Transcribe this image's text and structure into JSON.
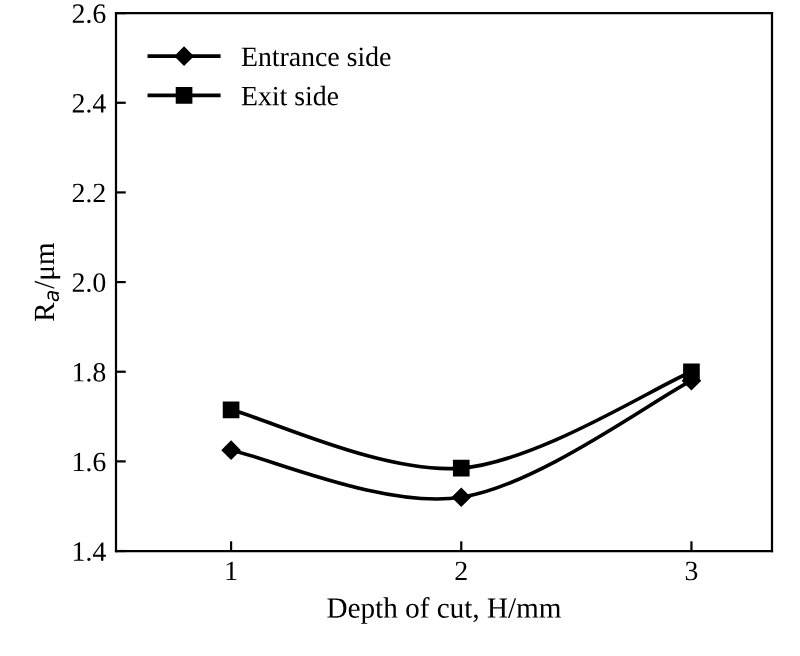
{
  "chart_data": {
    "type": "line",
    "xlabel": "Depth of cut, H/mm",
    "ylabel": "R$_{a}$/μm",
    "x": [
      1,
      2,
      3
    ],
    "series": [
      {
        "name": "Entrance side",
        "color": "#000000",
        "marker": "diamond",
        "values": [
          1.625,
          1.52,
          1.78
        ]
      },
      {
        "name": "Exit side",
        "color": "#000000",
        "marker": "square",
        "values": [
          1.715,
          1.585,
          1.8
        ]
      }
    ],
    "xlim": [
      0.5,
      3.35
    ],
    "xticks": [
      1,
      2,
      3
    ],
    "ylim": [
      1.4,
      2.6
    ],
    "yticks": [
      {
        "value": 1.4,
        "label": "1.4"
      },
      {
        "value": 1.6,
        "label": "1.6"
      },
      {
        "value": 1.8,
        "label": "1.8"
      },
      {
        "value": 2.0,
        "label": "2.0"
      },
      {
        "value": 2.2,
        "label": "2.2"
      },
      {
        "value": 2.4,
        "label": "2.4"
      },
      {
        "value": 2.6,
        "label": "2.6"
      }
    ],
    "grid": false,
    "legend": "top left",
    "line_style": "solid"
  }
}
